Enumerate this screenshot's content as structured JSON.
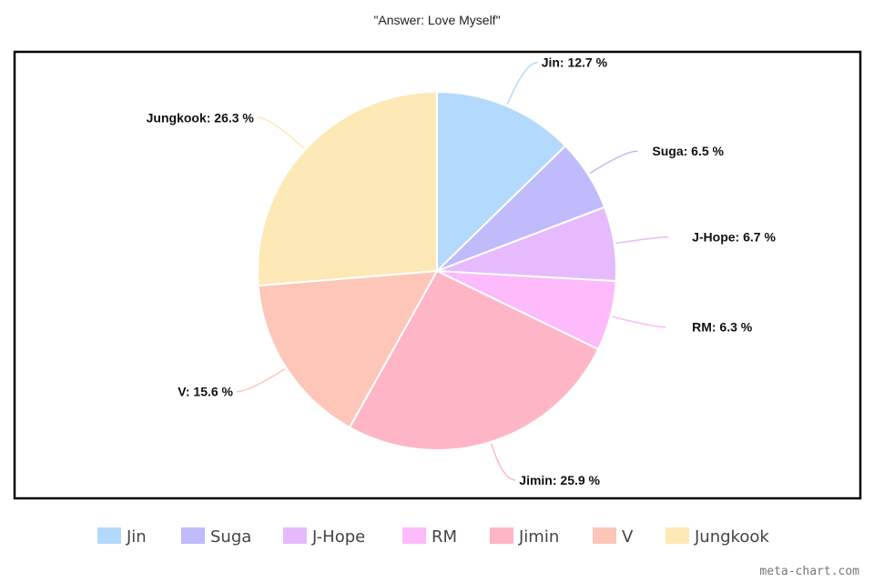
{
  "chart_data": {
    "type": "pie",
    "title": "\"Answer: Love Myself\"",
    "categories": [
      "Jin",
      "Suga",
      "J-Hope",
      "RM",
      "Jimin",
      "V",
      "Jungkook"
    ],
    "values": [
      12.7,
      6.5,
      6.7,
      6.3,
      25.9,
      15.6,
      26.3
    ],
    "labels": [
      "Jin: 12.7 %",
      "Suga: 6.5 %",
      "J-Hope: 6.7 %",
      "RM: 6.3 %",
      "Jimin: 25.9 %",
      "V: 15.6 %",
      "Jungkook: 26.3 %"
    ],
    "colors": [
      "#b3d9fd",
      "#c0bbfb",
      "#e5bbfd",
      "#fdbbfb",
      "#feb6c6",
      "#fdc6b8",
      "#fde9b6"
    ],
    "legend_position": "bottom",
    "start_angle": "12 o'clock",
    "direction": "clockwise"
  },
  "watermark": "meta-chart.com"
}
